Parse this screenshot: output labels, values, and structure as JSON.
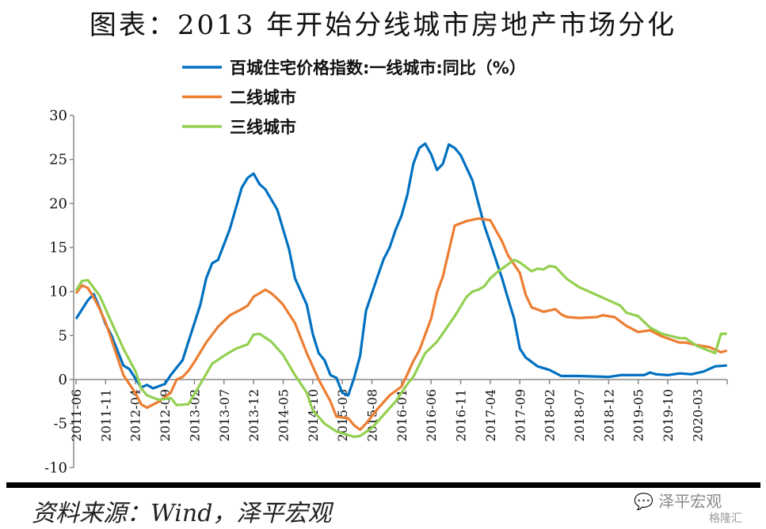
{
  "title": "图表：2013 年开始分线城市房地产市场分化",
  "source": "资料来源：Wind，泽平宏观",
  "watermark": "泽平宏观",
  "watermark2": "格隆汇",
  "chart_data": {
    "type": "line",
    "title": "图表：2013 年开始分线城市房地产市场分化",
    "xlabel": "",
    "ylabel": "",
    "ylim": [
      -10,
      30
    ],
    "yticks": [
      "30",
      "25",
      "20",
      "15",
      "10",
      "5",
      "0",
      "-5",
      "-10"
    ],
    "xrange": [
      "2011-06",
      "2020-08"
    ],
    "xticks": [
      "2011-06",
      "2011-11",
      "2012-04",
      "2012-09",
      "2013-02",
      "2013-07",
      "2013-12",
      "2014-05",
      "2014-10",
      "2015-03",
      "2015-08",
      "2016-01",
      "2016-06",
      "2016-11",
      "2017-04",
      "2017-09",
      "2018-02",
      "2018-07",
      "2018-12",
      "2019-05",
      "2019-10",
      "2020-03"
    ],
    "grid": false,
    "legend_position": "top-center",
    "series": [
      {
        "name": "百城住宅价格指数:一线城市:同比（%）",
        "color": "#0070C0",
        "points": [
          [
            "2011-06",
            6.9
          ],
          [
            "2011-08",
            9.0
          ],
          [
            "2011-09",
            9.7
          ],
          [
            "2011-10",
            8.1
          ],
          [
            "2011-11",
            6.3
          ],
          [
            "2011-12",
            5.0
          ],
          [
            "2012-02",
            1.6
          ],
          [
            "2012-03",
            1.2
          ],
          [
            "2012-05",
            -0.9
          ],
          [
            "2012-06",
            -0.6
          ],
          [
            "2012-07",
            -1.0
          ],
          [
            "2012-09",
            -0.5
          ],
          [
            "2012-10",
            0.5
          ],
          [
            "2012-12",
            2.2
          ],
          [
            "2013-01",
            4.3
          ],
          [
            "2013-03",
            8.5
          ],
          [
            "2013-04",
            11.5
          ],
          [
            "2013-05",
            13.2
          ],
          [
            "2013-06",
            13.6
          ],
          [
            "2013-08",
            17.1
          ],
          [
            "2013-10",
            21.8
          ],
          [
            "2013-11",
            22.9
          ],
          [
            "2013-12",
            23.4
          ],
          [
            "2014-01",
            22.2
          ],
          [
            "2014-02",
            21.6
          ],
          [
            "2014-04",
            19.3
          ],
          [
            "2014-06",
            14.8
          ],
          [
            "2014-07",
            11.5
          ],
          [
            "2014-09",
            8.5
          ],
          [
            "2014-10",
            5.2
          ],
          [
            "2014-11",
            3.0
          ],
          [
            "2014-12",
            2.2
          ],
          [
            "2015-01",
            0.5
          ],
          [
            "2015-02",
            0.2
          ],
          [
            "2015-03",
            -1.5
          ],
          [
            "2015-04",
            -1.8
          ],
          [
            "2015-05",
            0.2
          ],
          [
            "2015-06",
            2.7
          ],
          [
            "2015-07",
            7.8
          ],
          [
            "2015-09",
            11.8
          ],
          [
            "2015-10",
            13.7
          ],
          [
            "2015-11",
            15.0
          ],
          [
            "2015-12",
            17.0
          ],
          [
            "2016-01",
            18.6
          ],
          [
            "2016-02",
            21.0
          ],
          [
            "2016-03",
            24.5
          ],
          [
            "2016-04",
            26.3
          ],
          [
            "2016-05",
            26.8
          ],
          [
            "2016-06",
            25.6
          ],
          [
            "2016-07",
            23.8
          ],
          [
            "2016-08",
            24.5
          ],
          [
            "2016-09",
            26.7
          ],
          [
            "2016-10",
            26.3
          ],
          [
            "2016-11",
            25.5
          ],
          [
            "2017-01",
            22.6
          ],
          [
            "2017-02",
            20.0
          ],
          [
            "2017-03",
            17.5
          ],
          [
            "2017-04",
            15.5
          ],
          [
            "2017-05",
            13.5
          ],
          [
            "2017-06",
            11.5
          ],
          [
            "2017-07",
            9.2
          ],
          [
            "2017-08",
            7.0
          ],
          [
            "2017-09",
            3.5
          ],
          [
            "2017-10",
            2.5
          ],
          [
            "2017-11",
            2.0
          ],
          [
            "2017-12",
            1.5
          ],
          [
            "2018-02",
            1.1
          ],
          [
            "2018-04",
            0.4
          ],
          [
            "2018-07",
            0.4
          ],
          [
            "2018-12",
            0.3
          ],
          [
            "2019-02",
            0.5
          ],
          [
            "2019-06",
            0.5
          ],
          [
            "2019-07",
            0.8
          ],
          [
            "2019-08",
            0.6
          ],
          [
            "2019-10",
            0.5
          ],
          [
            "2019-12",
            0.7
          ],
          [
            "2020-02",
            0.6
          ],
          [
            "2020-04",
            0.9
          ],
          [
            "2020-06",
            1.5
          ],
          [
            "2020-08",
            1.6
          ]
        ]
      },
      {
        "name": "二线城市",
        "color": "#ED7D31",
        "points": [
          [
            "2011-06",
            9.8
          ],
          [
            "2011-07",
            10.7
          ],
          [
            "2011-08",
            10.4
          ],
          [
            "2011-09",
            9.3
          ],
          [
            "2011-10",
            8.0
          ],
          [
            "2011-11",
            6.5
          ],
          [
            "2011-12",
            4.5
          ],
          [
            "2012-01",
            2.5
          ],
          [
            "2012-02",
            0.5
          ],
          [
            "2012-04",
            -1.5
          ],
          [
            "2012-05",
            -2.8
          ],
          [
            "2012-06",
            -3.2
          ],
          [
            "2012-08",
            -2.5
          ],
          [
            "2012-10",
            -1.5
          ],
          [
            "2012-11",
            0.0
          ],
          [
            "2012-12",
            0.3
          ],
          [
            "2013-01",
            1.0
          ],
          [
            "2013-02",
            2.0
          ],
          [
            "2013-04",
            4.2
          ],
          [
            "2013-06",
            6.0
          ],
          [
            "2013-08",
            7.3
          ],
          [
            "2013-10",
            8.0
          ],
          [
            "2013-11",
            8.4
          ],
          [
            "2013-12",
            9.4
          ],
          [
            "2014-01",
            9.8
          ],
          [
            "2014-02",
            10.2
          ],
          [
            "2014-03",
            9.8
          ],
          [
            "2014-04",
            9.2
          ],
          [
            "2014-05",
            8.5
          ],
          [
            "2014-07",
            6.4
          ],
          [
            "2014-09",
            3.0
          ],
          [
            "2014-11",
            0.0
          ],
          [
            "2015-01",
            -2.5
          ],
          [
            "2015-02",
            -4.2
          ],
          [
            "2015-04",
            -4.4
          ],
          [
            "2015-05",
            -5.2
          ],
          [
            "2015-06",
            -5.7
          ],
          [
            "2015-07",
            -5.0
          ],
          [
            "2015-09",
            -3.3
          ],
          [
            "2015-11",
            -1.8
          ],
          [
            "2016-01",
            -0.8
          ],
          [
            "2016-02",
            0.6
          ],
          [
            "2016-03",
            2.1
          ],
          [
            "2016-04",
            3.3
          ],
          [
            "2016-06",
            6.9
          ],
          [
            "2016-07",
            9.9
          ],
          [
            "2016-08",
            11.7
          ],
          [
            "2016-10",
            17.5
          ],
          [
            "2016-12",
            18.0
          ],
          [
            "2017-02",
            18.3
          ],
          [
            "2017-04",
            18.1
          ],
          [
            "2017-06",
            15.7
          ],
          [
            "2017-07",
            14.1
          ],
          [
            "2017-09",
            12.1
          ],
          [
            "2017-10",
            9.6
          ],
          [
            "2017-11",
            8.2
          ],
          [
            "2018-01",
            7.7
          ],
          [
            "2018-03",
            8.0
          ],
          [
            "2018-04",
            7.4
          ],
          [
            "2018-05",
            7.1
          ],
          [
            "2018-07",
            7.0
          ],
          [
            "2018-10",
            7.1
          ],
          [
            "2018-11",
            7.3
          ],
          [
            "2019-01",
            7.1
          ],
          [
            "2019-03",
            6.1
          ],
          [
            "2019-05",
            5.4
          ],
          [
            "2019-07",
            5.6
          ],
          [
            "2019-09",
            4.9
          ],
          [
            "2019-12",
            4.2
          ],
          [
            "2020-01",
            4.2
          ],
          [
            "2020-03",
            3.9
          ],
          [
            "2020-05",
            3.7
          ],
          [
            "2020-07",
            3.1
          ],
          [
            "2020-08",
            3.3
          ]
        ]
      },
      {
        "name": "三线城市",
        "color": "#92D050",
        "points": [
          [
            "2011-06",
            10.1
          ],
          [
            "2011-07",
            11.2
          ],
          [
            "2011-08",
            11.3
          ],
          [
            "2011-10",
            9.5
          ],
          [
            "2011-12",
            6.5
          ],
          [
            "2012-02",
            3.5
          ],
          [
            "2012-04",
            1.0
          ],
          [
            "2012-05",
            -1.0
          ],
          [
            "2012-06",
            -1.8
          ],
          [
            "2012-08",
            -2.3
          ],
          [
            "2012-10",
            -2.1
          ],
          [
            "2012-11",
            -2.9
          ],
          [
            "2013-01",
            -2.8
          ],
          [
            "2013-03",
            -0.5
          ],
          [
            "2013-05",
            1.8
          ],
          [
            "2013-07",
            2.7
          ],
          [
            "2013-09",
            3.5
          ],
          [
            "2013-11",
            4.0
          ],
          [
            "2013-12",
            5.1
          ],
          [
            "2014-01",
            5.2
          ],
          [
            "2014-03",
            4.3
          ],
          [
            "2014-05",
            2.8
          ],
          [
            "2014-07",
            0.5
          ],
          [
            "2014-09",
            -1.5
          ],
          [
            "2014-10",
            -3.5
          ],
          [
            "2014-12",
            -5.0
          ],
          [
            "2015-02",
            -5.9
          ],
          [
            "2015-04",
            -6.3
          ],
          [
            "2015-05",
            -6.5
          ],
          [
            "2015-06",
            -6.4
          ],
          [
            "2015-08",
            -5.5
          ],
          [
            "2015-10",
            -4.0
          ],
          [
            "2015-12",
            -2.5
          ],
          [
            "2016-02",
            -0.5
          ],
          [
            "2016-03",
            0.3
          ],
          [
            "2016-05",
            3.0
          ],
          [
            "2016-07",
            4.3
          ],
          [
            "2016-10",
            7.2
          ],
          [
            "2016-12",
            9.4
          ],
          [
            "2017-01",
            10.0
          ],
          [
            "2017-02",
            10.2
          ],
          [
            "2017-03",
            10.6
          ],
          [
            "2017-04",
            11.5
          ],
          [
            "2017-05",
            12.1
          ],
          [
            "2017-08",
            13.6
          ],
          [
            "2017-09",
            13.3
          ],
          [
            "2017-11",
            12.3
          ],
          [
            "2017-12",
            12.6
          ],
          [
            "2018-01",
            12.5
          ],
          [
            "2018-02",
            12.9
          ],
          [
            "2018-03",
            12.8
          ],
          [
            "2018-05",
            11.4
          ],
          [
            "2018-07",
            10.5
          ],
          [
            "2018-10",
            9.6
          ],
          [
            "2018-12",
            9.0
          ],
          [
            "2019-02",
            8.4
          ],
          [
            "2019-03",
            7.6
          ],
          [
            "2019-05",
            7.2
          ],
          [
            "2019-07",
            5.9
          ],
          [
            "2019-09",
            5.2
          ],
          [
            "2019-12",
            4.7
          ],
          [
            "2020-01",
            4.7
          ],
          [
            "2020-03",
            3.8
          ],
          [
            "2020-06",
            3.0
          ],
          [
            "2020-07",
            5.2
          ],
          [
            "2020-08",
            5.2
          ]
        ]
      }
    ]
  }
}
